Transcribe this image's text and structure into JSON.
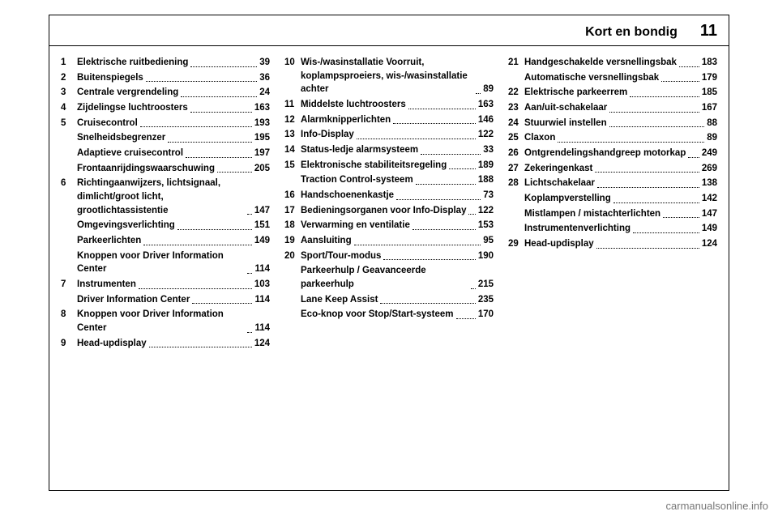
{
  "header": {
    "title": "Kort en bondig",
    "page": "11"
  },
  "watermark": "carmanualsonline.info",
  "columns": [
    [
      {
        "num": "1",
        "label": "Elektrische ruitbediening",
        "page": "39"
      },
      {
        "num": "2",
        "label": "Buitenspiegels",
        "page": "36"
      },
      {
        "num": "3",
        "label": "Centrale vergrendeling",
        "page": "24"
      },
      {
        "num": "4",
        "label": "Zijdelingse luchtroosters",
        "page": "163"
      },
      {
        "num": "5",
        "label": "Cruisecontrol",
        "page": "193"
      },
      {
        "num": "",
        "label": "Snelheidsbegrenzer",
        "page": "195"
      },
      {
        "num": "",
        "label": "Adaptieve cruisecontrol",
        "page": "197"
      },
      {
        "num": "",
        "label": "Frontaanrijdingswaar­schuwing",
        "page": "205"
      },
      {
        "num": "6",
        "label": "Richtingaanwijzers, lichtsignaal, dimlicht/groot licht, grootlichtassistentie",
        "page": "147"
      },
      {
        "num": "",
        "label": "Omgevingsverlichting",
        "page": "151"
      },
      {
        "num": "",
        "label": "Parkeerlichten",
        "page": "149"
      },
      {
        "num": "",
        "label": "Knoppen voor Driver Information Center",
        "page": "114"
      },
      {
        "num": "7",
        "label": "Instrumenten",
        "page": "103"
      },
      {
        "num": "",
        "label": "Driver Information Center",
        "page": "114"
      },
      {
        "num": "8",
        "label": "Knoppen voor Driver Information Center",
        "page": "114"
      },
      {
        "num": "9",
        "label": "Head-up­display",
        "page": "124"
      }
    ],
    [
      {
        "num": "10",
        "label": "Wis-/­wasinstallatie Voorruit, koplampsproeiers, wis-/­wasinstallatie achter",
        "page": "89"
      },
      {
        "num": "11",
        "label": "Middelste luchtroosters",
        "page": "163"
      },
      {
        "num": "12",
        "label": "Alarmknipperlichten",
        "page": "146"
      },
      {
        "num": "13",
        "label": "Info-Display",
        "page": "122"
      },
      {
        "num": "14",
        "label": "Status-ledje alarmsysteem",
        "page": "33"
      },
      {
        "num": "15",
        "label": "Elektronische stabiliteits­regeling",
        "page": "189"
      },
      {
        "num": "",
        "label": "Traction Control-systeem",
        "page": "188"
      },
      {
        "num": "16",
        "label": "Handschoenenkastje",
        "page": "73"
      },
      {
        "num": "17",
        "label": "Bedieningsorganen voor Info-Display",
        "page": "122"
      },
      {
        "num": "18",
        "label": "Verwarming en ventilatie",
        "page": "153"
      },
      {
        "num": "19",
        "label": "Aansluiting",
        "page": "95"
      },
      {
        "num": "20",
        "label": "Sport/Tour-modus",
        "page": "190"
      },
      {
        "num": "",
        "label": "Parkeerhulp / Geavanceerde parkeerhulp",
        "page": "215"
      },
      {
        "num": "",
        "label": "Lane Keep Assist",
        "page": "235"
      },
      {
        "num": "",
        "label": "Eco-knop voor Stop/Start-systeem",
        "page": "170"
      }
    ],
    [
      {
        "num": "21",
        "label": "Handgeschakelde versnellingsbak",
        "page": "183"
      },
      {
        "num": "",
        "label": "Automatische versnellingsbak",
        "page": "179"
      },
      {
        "num": "22",
        "label": "Elektrische parkeerrem",
        "page": "185"
      },
      {
        "num": "23",
        "label": "Aan/­uit-schakelaar",
        "page": "167"
      },
      {
        "num": "24",
        "label": "Stuurwiel instellen",
        "page": "88"
      },
      {
        "num": "25",
        "label": "Claxon",
        "page": "89"
      },
      {
        "num": "26",
        "label": "Ontgrendelingshandgreep motorkap",
        "page": "249"
      },
      {
        "num": "27",
        "label": "Zekeringenkast",
        "page": "269"
      },
      {
        "num": "28",
        "label": "Lichtschakelaar",
        "page": "138"
      },
      {
        "num": "",
        "label": "Koplampverstelling",
        "page": "142"
      },
      {
        "num": "",
        "label": "Mistlampen / mistachterlichten",
        "page": "147"
      },
      {
        "num": "",
        "label": "Instrumentenverlichting",
        "page": "149"
      },
      {
        "num": "29",
        "label": "Head-up­display",
        "page": "124"
      }
    ]
  ]
}
